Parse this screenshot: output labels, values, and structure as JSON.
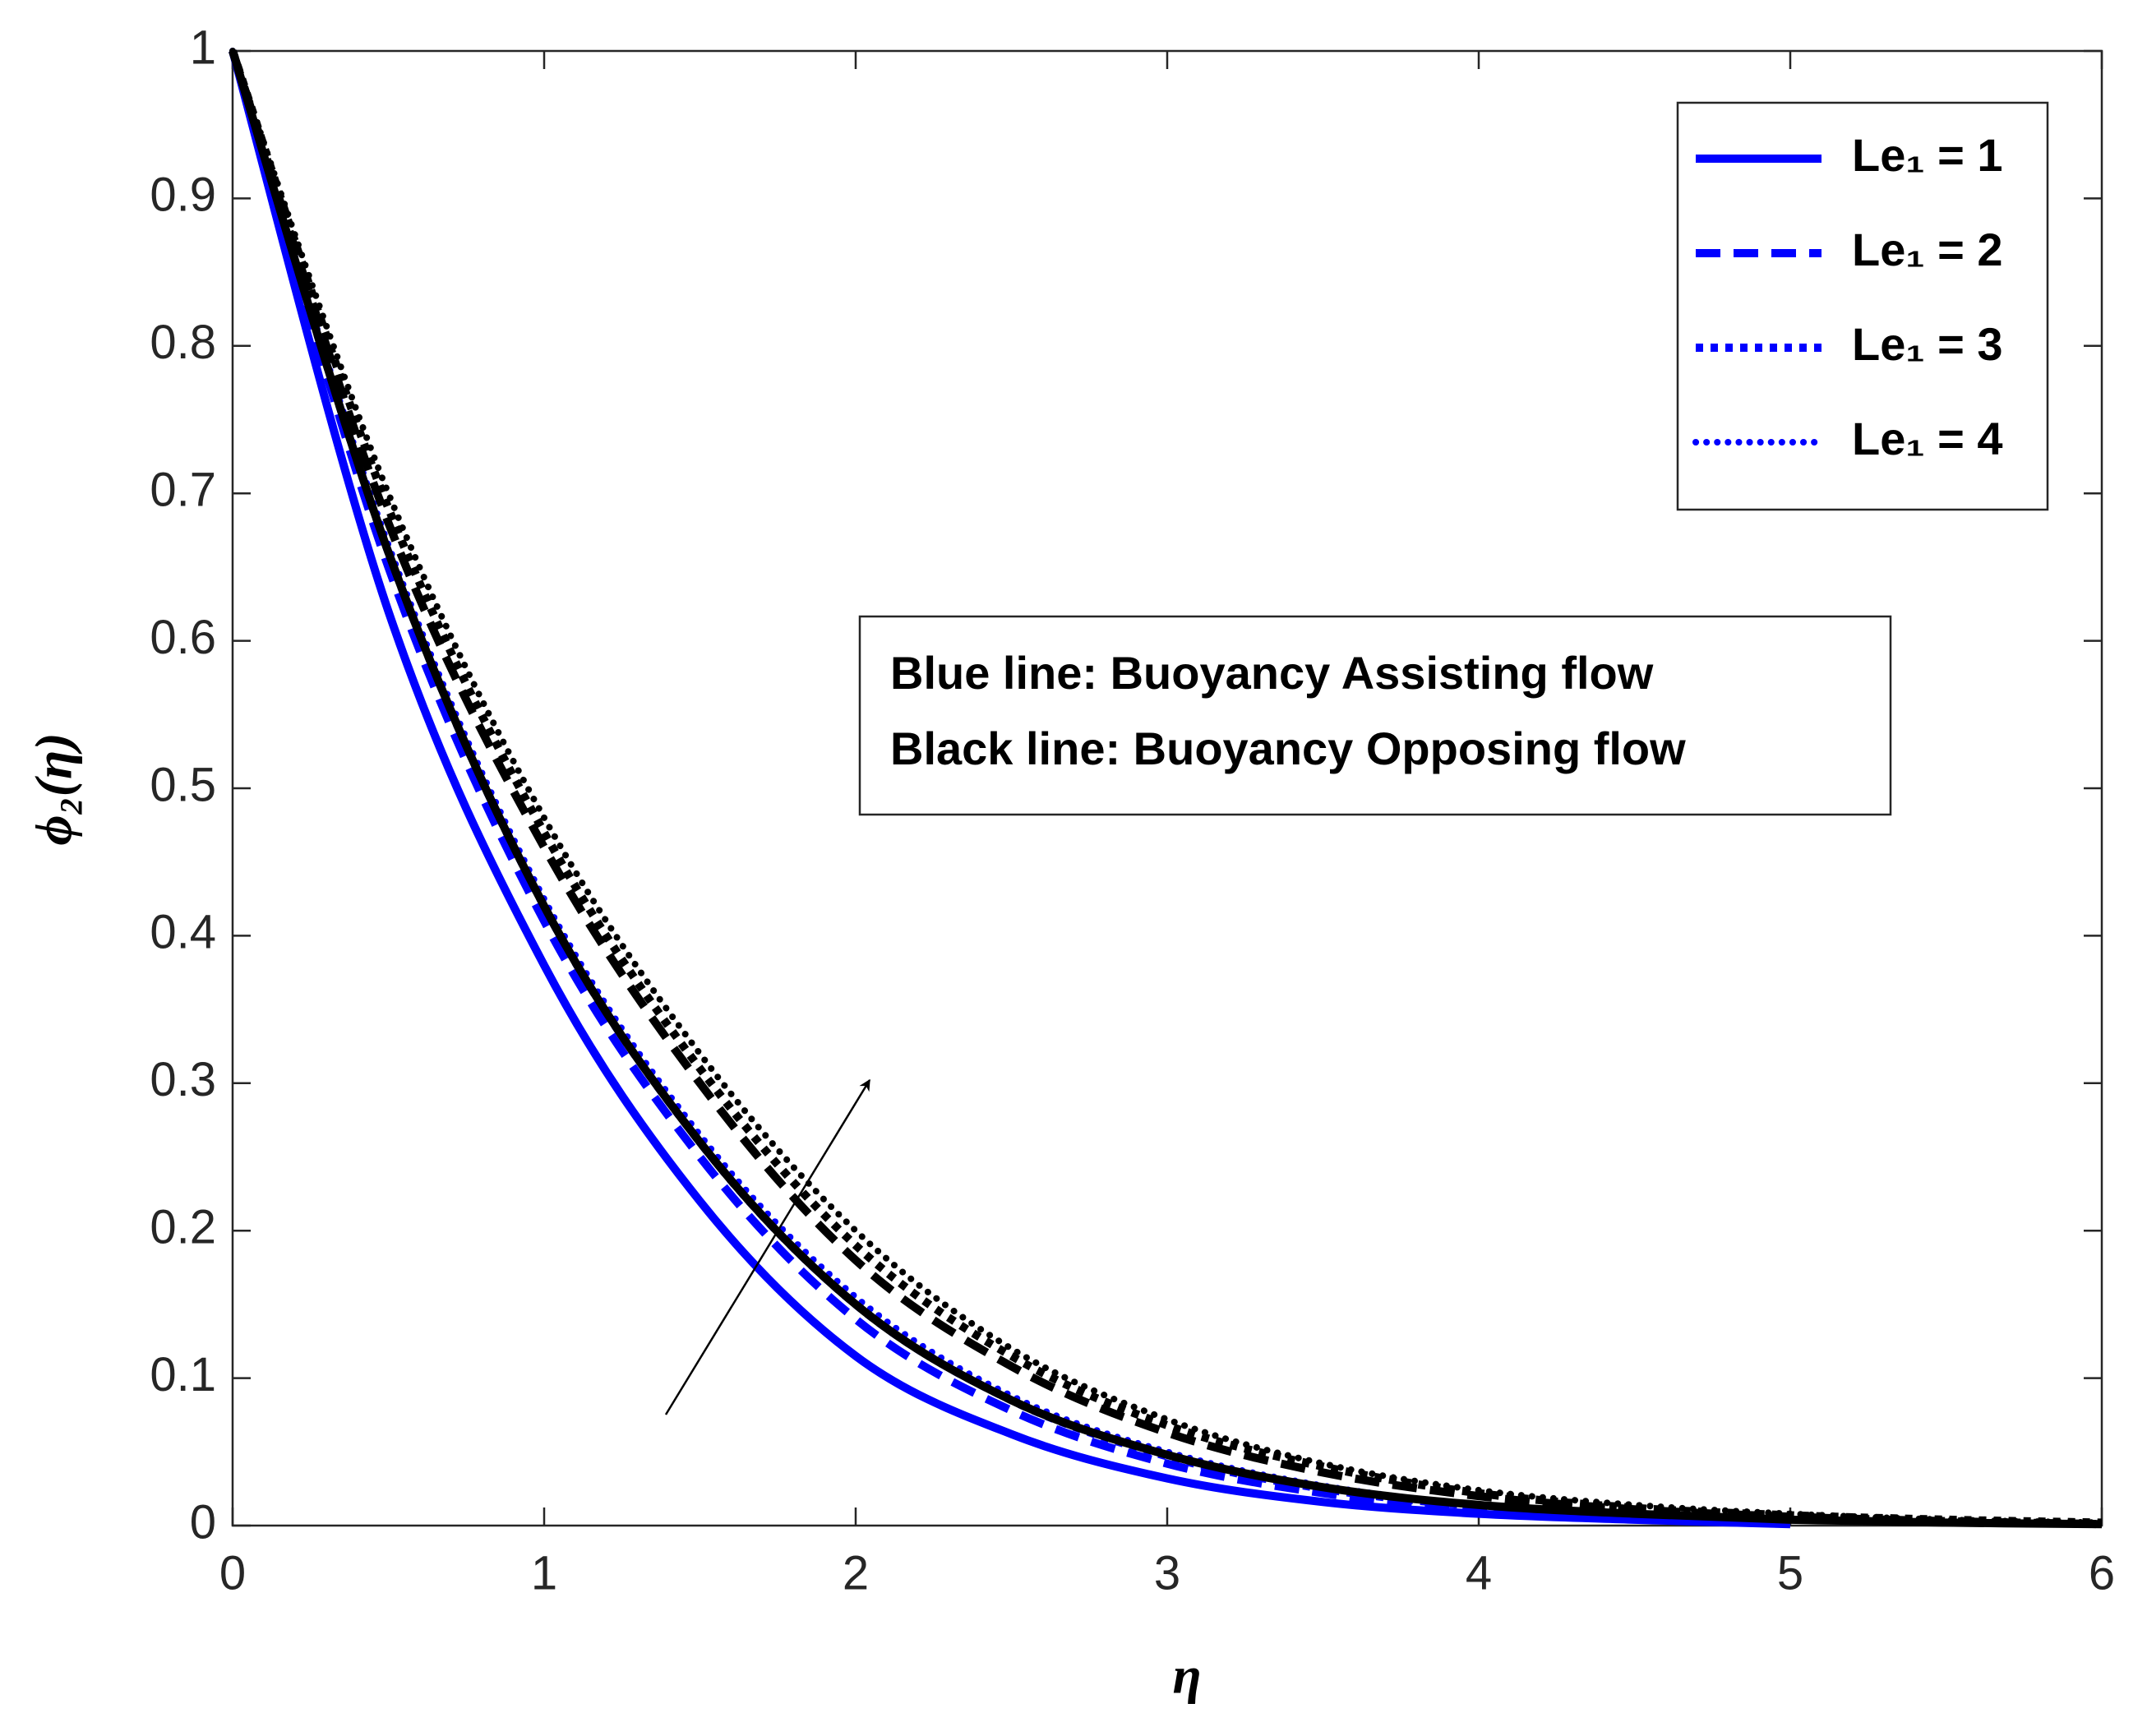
{
  "chart_data": {
    "type": "line",
    "xlabel": "η",
    "ylabel": "ϕ₂(η)",
    "annotation": [
      "Blue line: Buoyancy Assisting flow",
      "Black line: Buoyancy Opposing flow"
    ],
    "x": [
      0,
      0.5,
      1,
      1.5,
      2,
      2.5,
      3,
      3.5,
      4,
      4.5,
      5,
      5.5,
      6
    ],
    "xlim": [
      0,
      6
    ],
    "xticks": [
      0,
      1,
      2,
      3,
      4,
      5,
      6
    ],
    "ylim": [
      0,
      1
    ],
    "yticks": [
      0,
      0.1,
      0.2,
      0.3,
      0.4,
      0.5,
      0.6,
      0.7,
      0.8,
      0.9,
      1
    ],
    "grid": false,
    "legend": "upper right",
    "series": [
      {
        "name": "Le₁ = 1",
        "color": "#0000ff",
        "style": "solid",
        "values": [
          1,
          0.62,
          0.38,
          0.22,
          0.115,
          0.062,
          0.032,
          0.016,
          0.008,
          0.004,
          0.001,
          null,
          null
        ]
      },
      {
        "name": "Le₁ = 2",
        "color": "#0000ff",
        "style": "dashed",
        "values": [
          1,
          0.65,
          0.41,
          0.25,
          0.14,
          0.078,
          0.042,
          0.022,
          0.011,
          0.005,
          0.002,
          null,
          null
        ]
      },
      {
        "name": "Le₁ = 3",
        "color": "#0000ff",
        "style": "dotted",
        "values": [
          1,
          0.66,
          0.42,
          0.26,
          0.15,
          0.085,
          0.047,
          0.025,
          0.013,
          0.006,
          0.003,
          null,
          null
        ]
      },
      {
        "name": "Le₁ = 4",
        "color": "#0000ff",
        "style": "points",
        "values": [
          1,
          0.665,
          0.425,
          0.265,
          0.155,
          0.088,
          0.05,
          0.027,
          0.014,
          0.007,
          0.003,
          null,
          null
        ]
      },
      {
        "color": "#000000",
        "style": "solid",
        "values": [
          1,
          0.66,
          0.42,
          0.26,
          0.15,
          0.085,
          0.048,
          0.026,
          0.014,
          0.008,
          0.004,
          0.002,
          0.001
        ]
      },
      {
        "color": "#000000",
        "style": "dashed",
        "values": [
          1,
          0.68,
          0.46,
          0.3,
          0.18,
          0.108,
          0.063,
          0.036,
          0.02,
          0.011,
          0.006,
          0.003,
          0.001
        ]
      },
      {
        "color": "#000000",
        "style": "dotted",
        "values": [
          1,
          0.69,
          0.47,
          0.31,
          0.19,
          0.115,
          0.068,
          0.04,
          0.022,
          0.012,
          0.007,
          0.004,
          0.002
        ]
      },
      {
        "color": "#000000",
        "style": "points",
        "values": [
          1,
          0.7,
          0.48,
          0.32,
          0.2,
          0.12,
          0.072,
          0.042,
          0.024,
          0.014,
          0.008,
          0.004,
          0.002
        ]
      }
    ]
  }
}
